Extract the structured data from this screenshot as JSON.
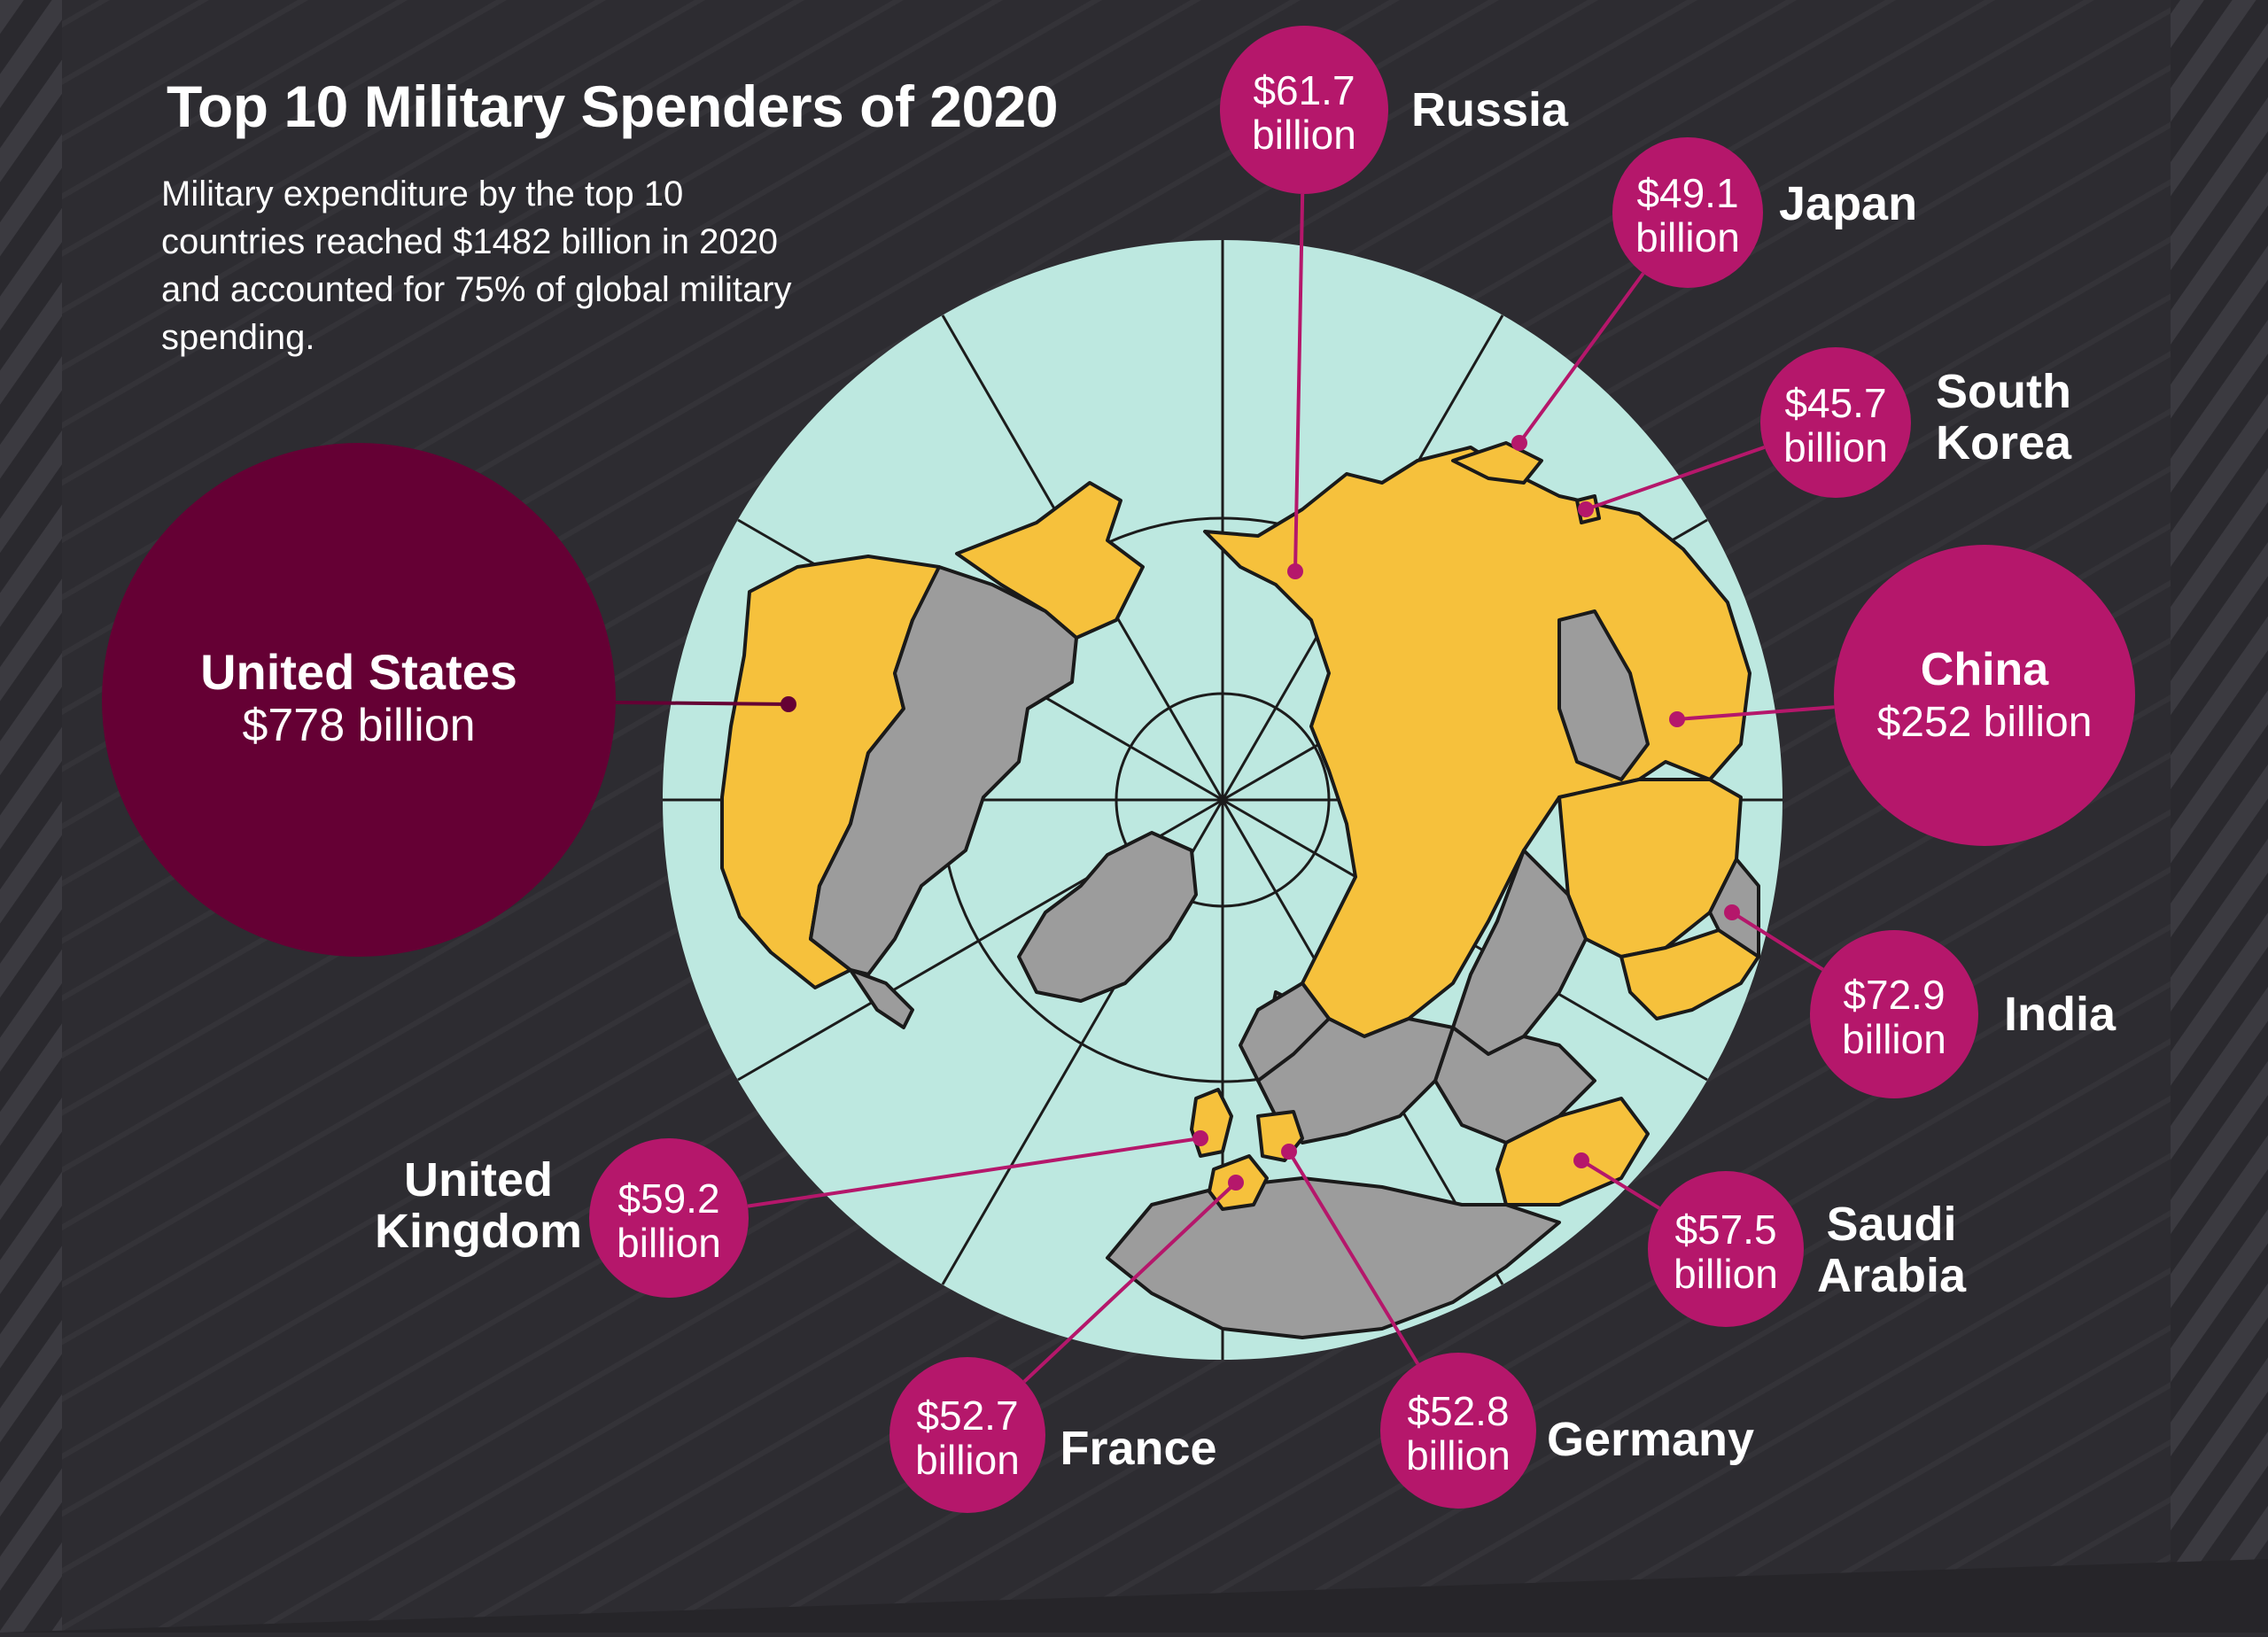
{
  "title": "Top 10 Military Spenders of 2020",
  "subtitle": "Military expenditure by the top 10 countries reached $1482 billion in 2020 and accounted for 75% of global military spending.",
  "colors": {
    "background": "#2d2c31",
    "stripe": "#3a393e",
    "ocean": "#bde8e0",
    "highlight_land": "#f6c13c",
    "other_land": "#9c9c9c",
    "bubble": "#b5176b",
    "bubble_largest": "#650034",
    "text": "#ffffff"
  },
  "countries": [
    {
      "name": "United States",
      "value": "$778 billion",
      "amount_billion": 778
    },
    {
      "name": "China",
      "value": "$252 billion",
      "amount_billion": 252
    },
    {
      "name": "India",
      "value": "$72.9 billion",
      "amount_billion": 72.9
    },
    {
      "name": "Russia",
      "value": "$61.7 billion",
      "amount_billion": 61.7
    },
    {
      "name": "United Kingdom",
      "value": "$59.2 billion",
      "amount_billion": 59.2
    },
    {
      "name": "Saudi Arabia",
      "value": "$57.5 billion",
      "amount_billion": 57.5
    },
    {
      "name": "Germany",
      "value": "$52.8 billion",
      "amount_billion": 52.8
    },
    {
      "name": "France",
      "value": "$52.7 billion",
      "amount_billion": 52.7
    },
    {
      "name": "Japan",
      "value": "$49.1 billion",
      "amount_billion": 49.1
    },
    {
      "name": "South Korea",
      "value": "$45.7 billion",
      "amount_billion": 45.7
    }
  ]
}
